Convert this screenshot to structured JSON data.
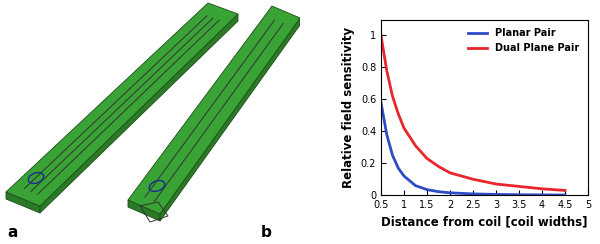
{
  "chart_data": {
    "type": "line",
    "x_label": "Distance from coil [coil widths]",
    "y_label": "Relative field sensitivity",
    "x": [
      0.5,
      0.625,
      0.75,
      0.875,
      1.0,
      1.25,
      1.5,
      1.75,
      2.0,
      2.5,
      3.0,
      3.5,
      4.0,
      4.5
    ],
    "series": [
      {
        "name": "Planar Pair",
        "color": "#2e4bc6",
        "values": [
          0.58,
          0.38,
          0.25,
          0.17,
          0.12,
          0.06,
          0.035,
          0.022,
          0.015,
          0.008,
          0.005,
          0.003,
          0.002,
          0.001
        ]
      },
      {
        "name": "Dual Plane Pair",
        "color": "#e8262b",
        "values": [
          1.0,
          0.78,
          0.62,
          0.51,
          0.42,
          0.31,
          0.23,
          0.18,
          0.14,
          0.1,
          0.07,
          0.055,
          0.04,
          0.03
        ]
      }
    ],
    "xlim": [
      0.5,
      5
    ],
    "xticks": [
      0.5,
      1,
      1.5,
      2,
      2.5,
      3,
      3.5,
      4,
      4.5,
      5
    ],
    "ylim": [
      0,
      1.1
    ],
    "yticks": [
      0,
      0.2,
      0.4,
      0.6,
      0.8,
      1
    ],
    "grid": false,
    "legend": "upper right"
  },
  "panel_labels": [
    "a",
    "b"
  ]
}
